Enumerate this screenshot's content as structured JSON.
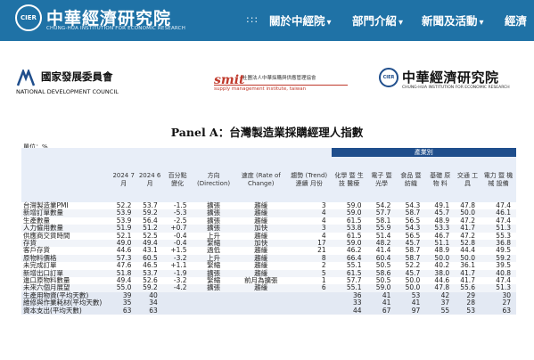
{
  "header": {
    "logo_badge": "CIER",
    "logo_cn": "中華經濟研究院",
    "logo_en": "CHUNG-HUA INSTITUTION FOR ECONOMIC RESEARCH",
    "nav_dots": ":::",
    "nav": [
      {
        "label": "關於中經院",
        "chev": "▾"
      },
      {
        "label": "部門介紹",
        "chev": "▾"
      },
      {
        "label": "新聞及活動",
        "chev": "▾"
      },
      {
        "label": "經濟"
      }
    ],
    "colors": {
      "bar": "#1f72a6"
    }
  },
  "sponsors": {
    "ndc_cn": "國家發展委員會",
    "ndc_en": "NATIONAL DEVELOPMENT COUNCIL",
    "smit_logo": "smit",
    "smit_cn": "社團法人中華採購與供應管理協會",
    "smit_en": "supply management institute, taiwan",
    "cier_badge": "CIER",
    "cier_cn": "中華經濟研究院",
    "cier_en": "CHUNG-HUA INSTITUTION FOR ECONOMIC RESEARCH"
  },
  "panel_title": "Panel A：台灣製造業採購經理人指數",
  "unit": "單位：%",
  "table": {
    "group_header": "產業別",
    "columns": [
      "",
      "2024 7月",
      "2024 6月",
      "百分點 變化",
      "方向 (Direction)",
      "速度 (Rate of Change)",
      "趨勢 (Trend) 連續 月份",
      "化學 暨 生技 醫療",
      "電子 暨 光學",
      "食品 暨 紡織",
      "基礎 原物 料",
      "交通 工具",
      "電力 暨 機械 設備"
    ],
    "rows": [
      [
        "台灣製造業PMI",
        "52.2",
        "53.7",
        "-1.5",
        "擴張",
        "趨緩",
        "3",
        "59.0",
        "54.2",
        "54.3",
        "49.1",
        "47.8",
        "47.4"
      ],
      [
        "新增訂單數量",
        "53.9",
        "59.2",
        "-5.3",
        "擴張",
        "趨緩",
        "4",
        "59.0",
        "57.7",
        "58.7",
        "45.7",
        "50.0",
        "46.1"
      ],
      [
        "生產數量",
        "53.9",
        "56.4",
        "-2.5",
        "擴張",
        "趨緩",
        "4",
        "61.5",
        "58.1",
        "56.5",
        "48.9",
        "47.2",
        "47.4"
      ],
      [
        "人力僱用數量",
        "51.9",
        "51.2",
        "+0.7",
        "擴張",
        "加快",
        "3",
        "53.8",
        "55.9",
        "54.3",
        "53.3",
        "41.7",
        "51.3"
      ],
      [
        "供應商交貨時間",
        "52.1",
        "52.5",
        "-0.4",
        "上升",
        "趨緩",
        "4",
        "61.5",
        "51.4",
        "56.5",
        "46.7",
        "47.2",
        "55.3"
      ],
      [
        "存貨",
        "49.0",
        "49.4",
        "-0.4",
        "緊縮",
        "加快",
        "17",
        "59.0",
        "48.2",
        "45.7",
        "51.1",
        "52.8",
        "36.8"
      ],
      [
        "客戶存貨",
        "44.6",
        "43.1",
        "+1.5",
        "過低",
        "趨緩",
        "21",
        "46.2",
        "41.4",
        "58.7",
        "48.9",
        "44.4",
        "49.5"
      ],
      [
        "原物料價格",
        "57.3",
        "60.5",
        "-3.2",
        "上升",
        "趨緩",
        "8",
        "66.4",
        "60.4",
        "58.7",
        "50.0",
        "50.0",
        "59.2"
      ],
      [
        "未完成訂單",
        "47.6",
        "46.5",
        "+1.1",
        "緊縮",
        "趨緩",
        "2",
        "55.1",
        "50.5",
        "52.2",
        "40.2",
        "36.1",
        "39.5"
      ],
      [
        "新增出口訂單",
        "51.8",
        "53.7",
        "-1.9",
        "擴張",
        "趨緩",
        "5",
        "61.5",
        "58.6",
        "45.7",
        "38.0",
        "41.7",
        "40.8"
      ],
      [
        "進口原物料數量",
        "49.4",
        "52.6",
        "-3.2",
        "緊縮",
        "前月為擴張",
        "1",
        "57.7",
        "50.5",
        "50.0",
        "44.6",
        "41.7",
        "47.4"
      ],
      [
        "未來六個月展望",
        "55.0",
        "59.2",
        "-4.2",
        "擴張",
        "趨緩",
        "6",
        "55.1",
        "59.0",
        "50.0",
        "47.8",
        "55.6",
        "51.3"
      ],
      [
        "生產用物資(平均天數)",
        "39",
        "40",
        "",
        "",
        "",
        "",
        "36",
        "41",
        "53",
        "42",
        "29",
        "30"
      ],
      [
        "維修與作業耗材(平均天數)",
        "35",
        "34",
        "",
        "",
        "",
        "",
        "33",
        "41",
        "41",
        "37",
        "28",
        "27"
      ],
      [
        "資本支出(平均天數)",
        "63",
        "63",
        "",
        "",
        "",
        "",
        "44",
        "67",
        "97",
        "55",
        "53",
        "63"
      ]
    ]
  }
}
